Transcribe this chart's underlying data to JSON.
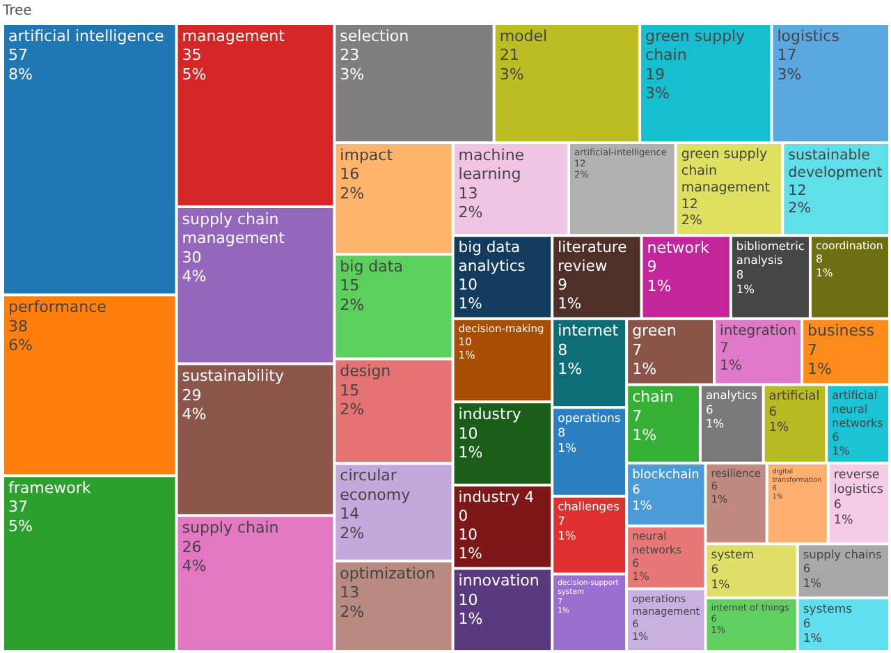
{
  "chart_data": {
    "type": "other",
    "title": "Tree",
    "data_labels": true,
    "categories": [
      "artificial intelligence",
      "performance",
      "framework",
      "management",
      "supply chain management",
      "sustainability",
      "supply chain",
      "selection",
      "model",
      "green supply chain",
      "logistics",
      "impact",
      "big data",
      "design",
      "circular economy",
      "optimization",
      "machine learning",
      "artificial-intelligence",
      "green supply chain management",
      "sustainable development",
      "big data analytics",
      "decision-making",
      "industry",
      "industry 4 0",
      "innovation",
      "literature review",
      "network",
      "bibliometric analysis",
      "coordination",
      "internet",
      "operations",
      "challenges",
      "decision-support system",
      "green",
      "integration",
      "business",
      "chain",
      "analytics",
      "artificial",
      "artificial neural networks",
      "blockchain",
      "neural networks",
      "operations management",
      "resilience",
      "digital transformation",
      "reverse logistics",
      "system",
      "internet of things",
      "supply chains",
      "systems"
    ],
    "values": [
      57,
      38,
      37,
      35,
      30,
      29,
      26,
      23,
      21,
      19,
      17,
      16,
      15,
      15,
      14,
      13,
      13,
      12,
      12,
      12,
      10,
      10,
      10,
      10,
      10,
      9,
      9,
      8,
      8,
      8,
      8,
      7,
      7,
      7,
      7,
      7,
      7,
      6,
      6,
      6,
      6,
      6,
      6,
      6,
      6,
      6,
      6,
      6,
      6,
      6
    ],
    "annotations": [
      {
        "text": "8%",
        "x": "artificial intelligence"
      },
      {
        "text": "6%",
        "x": "performance"
      },
      {
        "text": "5%",
        "x": "framework"
      },
      {
        "text": "5%",
        "x": "management"
      },
      {
        "text": "4%",
        "x": "supply chain management"
      },
      {
        "text": "4%",
        "x": "sustainability"
      },
      {
        "text": "4%",
        "x": "supply chain"
      },
      {
        "text": "3%",
        "x": "selection"
      },
      {
        "text": "3%",
        "x": "model"
      },
      {
        "text": "3%",
        "x": "green supply chain"
      },
      {
        "text": "3%",
        "x": "logistics"
      },
      {
        "text": "2%",
        "x": "impact"
      },
      {
        "text": "2%",
        "x": "big data"
      },
      {
        "text": "2%",
        "x": "design"
      },
      {
        "text": "2%",
        "x": "circular economy"
      },
      {
        "text": "2%",
        "x": "optimization"
      },
      {
        "text": "2%",
        "x": "machine learning"
      },
      {
        "text": "2%",
        "x": "artificial-intelligence"
      },
      {
        "text": "2%",
        "x": "green supply chain management"
      },
      {
        "text": "2%",
        "x": "sustainable development"
      },
      {
        "text": "1%",
        "x": "big data analytics"
      },
      {
        "text": "1%",
        "x": "decision-making"
      },
      {
        "text": "1%",
        "x": "industry"
      },
      {
        "text": "1%",
        "x": "industry 4 0"
      },
      {
        "text": "1%",
        "x": "innovation"
      },
      {
        "text": "1%",
        "x": "literature review"
      },
      {
        "text": "1%",
        "x": "network"
      },
      {
        "text": "1%",
        "x": "bibliometric analysis"
      },
      {
        "text": "1%",
        "x": "coordination"
      },
      {
        "text": "1%",
        "x": "internet"
      },
      {
        "text": "1%",
        "x": "operations"
      },
      {
        "text": "1%",
        "x": "challenges"
      },
      {
        "text": "1%",
        "x": "decision-support system"
      },
      {
        "text": "1%",
        "x": "green"
      },
      {
        "text": "1%",
        "x": "integration"
      },
      {
        "text": "1%",
        "x": "business"
      },
      {
        "text": "1%",
        "x": "chain"
      },
      {
        "text": "1%",
        "x": "analytics"
      },
      {
        "text": "1%",
        "x": "artificial"
      },
      {
        "text": "1%",
        "x": "artificial neural networks"
      },
      {
        "text": "1%",
        "x": "blockchain"
      },
      {
        "text": "1%",
        "x": "neural networks"
      },
      {
        "text": "1%",
        "x": "operations management"
      },
      {
        "text": "1%",
        "x": "resilience"
      },
      {
        "text": "1%",
        "x": "digital transformation"
      },
      {
        "text": "1%",
        "x": "reverse logistics"
      },
      {
        "text": "1%",
        "x": "system"
      },
      {
        "text": "1%",
        "x": "internet of things"
      },
      {
        "text": "1%",
        "x": "supply chains"
      },
      {
        "text": "1%",
        "x": "systems"
      }
    ],
    "colors": [
      "#1f77b4",
      "#ff7f0e",
      "#2ca02c",
      "#d62728",
      "#9467bd",
      "#8c564b",
      "#e377c2",
      "#7f7f7f",
      "#bcbd22",
      "#17becf",
      "#5ba8e0",
      "#ffb36b",
      "#5cd05c",
      "#e57373",
      "#c3a8dc",
      "#b88a80",
      "#f2c4e4",
      "#b0b0b0",
      "#e0e060",
      "#5fdfea",
      "#123b5e",
      "#a84d04",
      "#1a5e1a",
      "#7e1717",
      "#5a3a7e",
      "#4e3029",
      "#c4259a",
      "#454545",
      "#6e6f13",
      "#0e6e78",
      "#2a7fc0",
      "#e03030",
      "#9a6fcf",
      "#8a5548",
      "#e07ac8",
      "#ff8c1a",
      "#35b035",
      "#7a7a7a",
      "#b8ba22",
      "#1ac4d4",
      "#4a9ad8",
      "#e87878",
      "#c8b0e0",
      "#c08a80",
      "#ffb070",
      "#f5cce8",
      "#e0e068",
      "#60d060",
      "#a8a8a8",
      "#60e0ee"
    ]
  }
}
